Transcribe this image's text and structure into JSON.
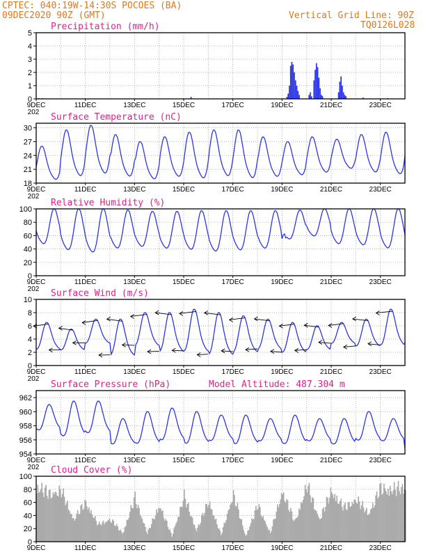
{
  "header": {
    "station": "CPTEC:   040:19W-14:30S   POCOES (BA)",
    "run": "09DEC2020 90Z (GMT)",
    "grid_note": "Vertical Grid Line: 90Z",
    "code": "TQ0126L028"
  },
  "x_tick_labels": [
    "9DEC",
    "11DEC",
    "13DEC",
    "15DEC",
    "17DEC",
    "19DEC",
    "21DEC",
    "23DEC"
  ],
  "year_fragment": "202",
  "colors": {
    "series": "#2a35e6",
    "bars": "#2a35e6",
    "cloud": "#aaaaaa",
    "title": "#e0208a",
    "header": "#e0781c",
    "grid": "#000000"
  },
  "chart_data": [
    {
      "id": "precip",
      "type": "bar",
      "title": "Precipitation (mm/h)",
      "ylim": [
        0,
        5
      ],
      "yticks": [
        0,
        1,
        2,
        3,
        4,
        5
      ],
      "xlim_days": [
        0,
        15
      ],
      "bars": [
        [
          0.1,
          0.05
        ],
        [
          0.25,
          0.05
        ],
        [
          6.3,
          0.15
        ],
        [
          13.3,
          0.1
        ],
        [
          14.3,
          0.05
        ],
        [
          10.2,
          0.15
        ],
        [
          10.25,
          0.4
        ],
        [
          10.3,
          1.0
        ],
        [
          10.35,
          2.5
        ],
        [
          10.4,
          2.8
        ],
        [
          10.45,
          2.6
        ],
        [
          10.5,
          2.0
        ],
        [
          10.55,
          1.4
        ],
        [
          10.6,
          1.0
        ],
        [
          10.65,
          0.6
        ],
        [
          10.7,
          0.3
        ],
        [
          11.1,
          0.3
        ],
        [
          11.15,
          0.5
        ],
        [
          11.2,
          0.2
        ],
        [
          11.3,
          1.4
        ],
        [
          11.35,
          2.2
        ],
        [
          11.4,
          2.7
        ],
        [
          11.45,
          2.4
        ],
        [
          11.5,
          1.6
        ],
        [
          11.55,
          0.8
        ],
        [
          11.6,
          0.3
        ],
        [
          11.65,
          0.2
        ],
        [
          12.3,
          0.5
        ],
        [
          12.35,
          1.3
        ],
        [
          12.4,
          1.7
        ],
        [
          12.45,
          1.0
        ],
        [
          12.5,
          0.5
        ],
        [
          12.55,
          0.3
        ],
        [
          12.6,
          0.2
        ]
      ]
    },
    {
      "id": "temp",
      "type": "line",
      "title": "Surface Temperature (nC)",
      "ylim": [
        18,
        31
      ],
      "yticks": [
        18,
        21,
        24,
        27,
        30
      ],
      "xlim_days": [
        0,
        15
      ],
      "diurnal": {
        "phase_day": 0.25,
        "max": [
          26.0,
          29.5,
          30.5,
          28.5,
          27.0,
          28.0,
          29.0,
          29.5,
          29.5,
          28.0,
          27.0,
          28.0,
          27.5,
          28.5,
          29.0,
          29.0
        ],
        "min": [
          18.0,
          18.5,
          19.0,
          18.5,
          18.0,
          18.5,
          18.0,
          18.5,
          18.0,
          18.5,
          19.0,
          19.5,
          20.5,
          19.5,
          19.0,
          20.0
        ]
      }
    },
    {
      "id": "rh",
      "type": "line",
      "title": "Relative Humidity (%)",
      "ylim": [
        0,
        100
      ],
      "yticks": [
        0,
        20,
        40,
        60,
        80,
        100
      ],
      "xlim_days": [
        0,
        15
      ],
      "diurnal": {
        "phase_day": 0.75,
        "max": [
          100,
          100,
          100,
          98,
          96,
          96,
          97,
          97,
          97,
          97,
          98,
          100,
          100,
          100,
          100,
          96
        ],
        "min": [
          42,
          32,
          28,
          35,
          38,
          35,
          33,
          30,
          32,
          35,
          50,
          55,
          42,
          40,
          35,
          35
        ]
      }
    },
    {
      "id": "wind",
      "type": "line",
      "title": "Surface Wind (m/s)",
      "ylim": [
        0,
        10
      ],
      "yticks": [
        0,
        2,
        4,
        6,
        8,
        10
      ],
      "xlim_days": [
        0,
        15
      ],
      "diurnal": {
        "phase_day": 0.45,
        "max": [
          6.5,
          5.5,
          7.0,
          7.0,
          8.0,
          8.0,
          8.5,
          8.0,
          7.5,
          7.0,
          6.5,
          6.0,
          6.5,
          7.0,
          8.5,
          7.0
        ],
        "min": [
          2.0,
          2.0,
          3.0,
          1.0,
          2.5,
          1.5,
          1.5,
          1.0,
          1.5,
          2.0,
          1.5,
          2.0,
          3.0,
          2.5,
          2.5,
          3.0
        ]
      },
      "vectors_every_hours": 12,
      "vector_direction": "from east"
    },
    {
      "id": "pres",
      "type": "line",
      "title": "Surface Pressure (hPa)",
      "annotation": "Model Altitude: 487.304 m",
      "ylim": [
        954,
        963
      ],
      "yticks": [
        954,
        956,
        958,
        960,
        962
      ],
      "xlim_days": [
        0,
        15
      ],
      "diurnal": {
        "phase_day": 0.55,
        "max": [
          961.0,
          961.5,
          961.5,
          959.0,
          960.0,
          960.5,
          960.0,
          959.5,
          959.5,
          959.0,
          959.5,
          959.0,
          959.0,
          960.0,
          959.0,
          959.0
        ],
        "min": [
          957.0,
          956.0,
          956.5,
          955.0,
          955.0,
          955.5,
          955.0,
          955.5,
          955.0,
          955.5,
          955.0,
          955.5,
          955.0,
          955.5,
          955.5,
          954.0
        ]
      }
    },
    {
      "id": "cloud",
      "type": "bar",
      "title": "Cloud Cover (%)",
      "ylim": [
        0,
        100
      ],
      "yticks": [
        0,
        20,
        40,
        60,
        80,
        100
      ],
      "xlim_days": [
        0,
        15
      ],
      "envelope": [
        [
          0.0,
          98
        ],
        [
          0.5,
          85
        ],
        [
          1.0,
          90
        ],
        [
          1.5,
          40
        ],
        [
          2.0,
          70
        ],
        [
          2.5,
          30
        ],
        [
          3.0,
          40
        ],
        [
          3.5,
          15
        ],
        [
          4.0,
          78
        ],
        [
          4.5,
          15
        ],
        [
          5.0,
          65
        ],
        [
          5.5,
          10
        ],
        [
          6.0,
          80
        ],
        [
          6.5,
          20
        ],
        [
          7.0,
          72
        ],
        [
          7.5,
          12
        ],
        [
          8.0,
          85
        ],
        [
          8.5,
          10
        ],
        [
          9.0,
          65
        ],
        [
          9.5,
          15
        ],
        [
          10.0,
          90
        ],
        [
          10.5,
          35
        ],
        [
          11.0,
          100
        ],
        [
          11.5,
          40
        ],
        [
          12.0,
          90
        ],
        [
          12.5,
          60
        ],
        [
          13.0,
          75
        ],
        [
          13.5,
          50
        ],
        [
          14.0,
          95
        ],
        [
          14.5,
          92
        ],
        [
          15.0,
          96
        ]
      ]
    }
  ]
}
